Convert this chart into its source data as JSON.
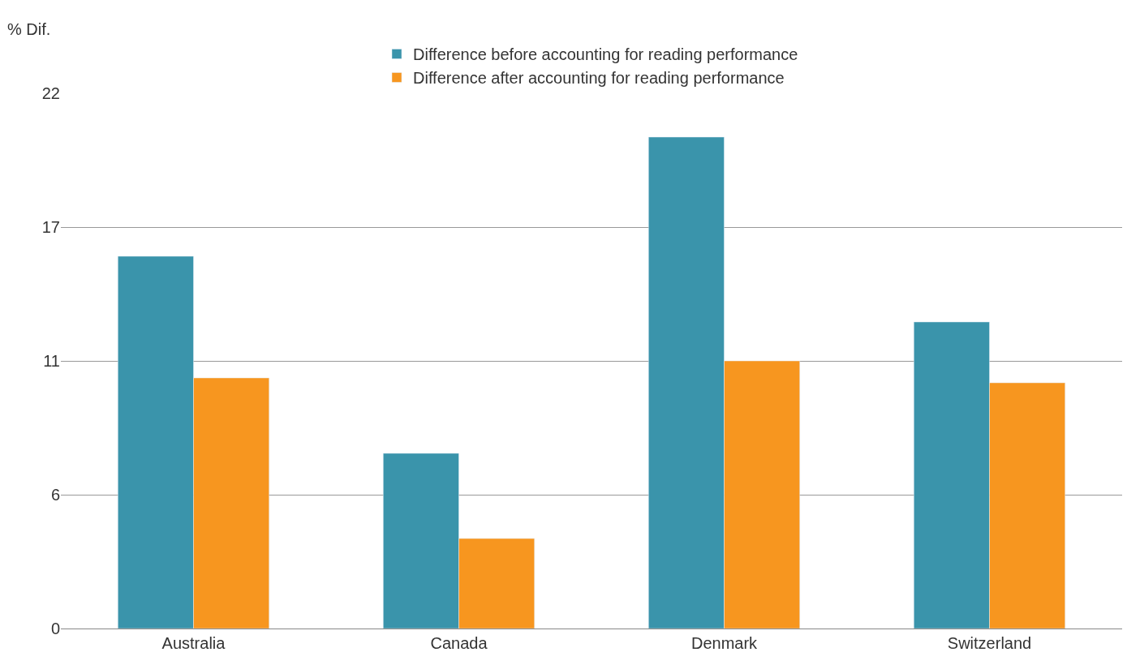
{
  "chart_data": {
    "type": "bar",
    "ylabel": "% Dif.",
    "categories": [
      "Australia",
      "Canada",
      "Denmark",
      "Switzerland"
    ],
    "series": [
      {
        "name": "Difference before accounting for reading performance",
        "color": "#3a94ab",
        "values": [
          15.3,
          7.2,
          20.2,
          12.6
        ]
      },
      {
        "name": "Difference after accounting for reading performance",
        "color": "#f7961f",
        "values": [
          10.3,
          3.7,
          11.0,
          10.1
        ]
      }
    ],
    "ylim": [
      0,
      22
    ],
    "yticks": [
      0,
      {
        "value": 5.5,
        "label": "6"
      },
      11,
      {
        "value": 16.5,
        "label": "17"
      },
      22
    ],
    "grid": "y",
    "legend": "top"
  }
}
